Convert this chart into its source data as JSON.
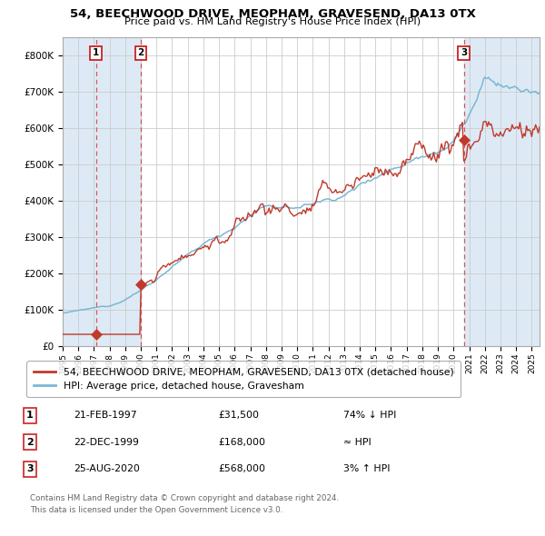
{
  "title": "54, BEECHWOOD DRIVE, MEOPHAM, GRAVESEND, DA13 0TX",
  "subtitle": "Price paid vs. HM Land Registry's House Price Index (HPI)",
  "legend_property": "54, BEECHWOOD DRIVE, MEOPHAM, GRAVESEND, DA13 0TX (detached house)",
  "legend_hpi": "HPI: Average price, detached house, Gravesham",
  "sales": [
    {
      "label": "1",
      "date": 1997.13,
      "price": 31500,
      "note": "21-FEB-1997",
      "amount": "£31,500",
      "pct": "74% ↓ HPI"
    },
    {
      "label": "2",
      "date": 2000.0,
      "price": 168000,
      "note": "22-DEC-1999",
      "amount": "£168,000",
      "pct": "≈ HPI"
    },
    {
      "label": "3",
      "date": 2020.65,
      "price": 568000,
      "note": "25-AUG-2020",
      "amount": "£568,000",
      "pct": "3% ↑ HPI"
    }
  ],
  "hpi_color": "#7ab8d4",
  "property_color": "#c0392b",
  "sale_marker_color": "#c0392b",
  "shade_color": "#ddeaf5",
  "dashed_color": "#d04040",
  "background_color": "#ffffff",
  "grid_color": "#cccccc",
  "ylim": [
    0,
    850000
  ],
  "xlim": [
    1995.0,
    2025.5
  ],
  "yticks": [
    0,
    100000,
    200000,
    300000,
    400000,
    500000,
    600000,
    700000,
    800000
  ],
  "xticks": [
    1995,
    1996,
    1997,
    1998,
    1999,
    2000,
    2001,
    2002,
    2003,
    2004,
    2005,
    2006,
    2007,
    2008,
    2009,
    2010,
    2011,
    2012,
    2013,
    2014,
    2015,
    2016,
    2017,
    2018,
    2019,
    2020,
    2021,
    2022,
    2023,
    2024,
    2025
  ],
  "footnote1": "Contains HM Land Registry data © Crown copyright and database right 2024.",
  "footnote2": "This data is licensed under the Open Government Licence v3.0.",
  "table_rows": [
    [
      "1",
      "21-FEB-1997",
      "£31,500",
      "74% ↓ HPI"
    ],
    [
      "2",
      "22-DEC-1999",
      "£168,000",
      "≈ HPI"
    ],
    [
      "3",
      "25-AUG-2020",
      "£568,000",
      "3% ↑ HPI"
    ]
  ]
}
